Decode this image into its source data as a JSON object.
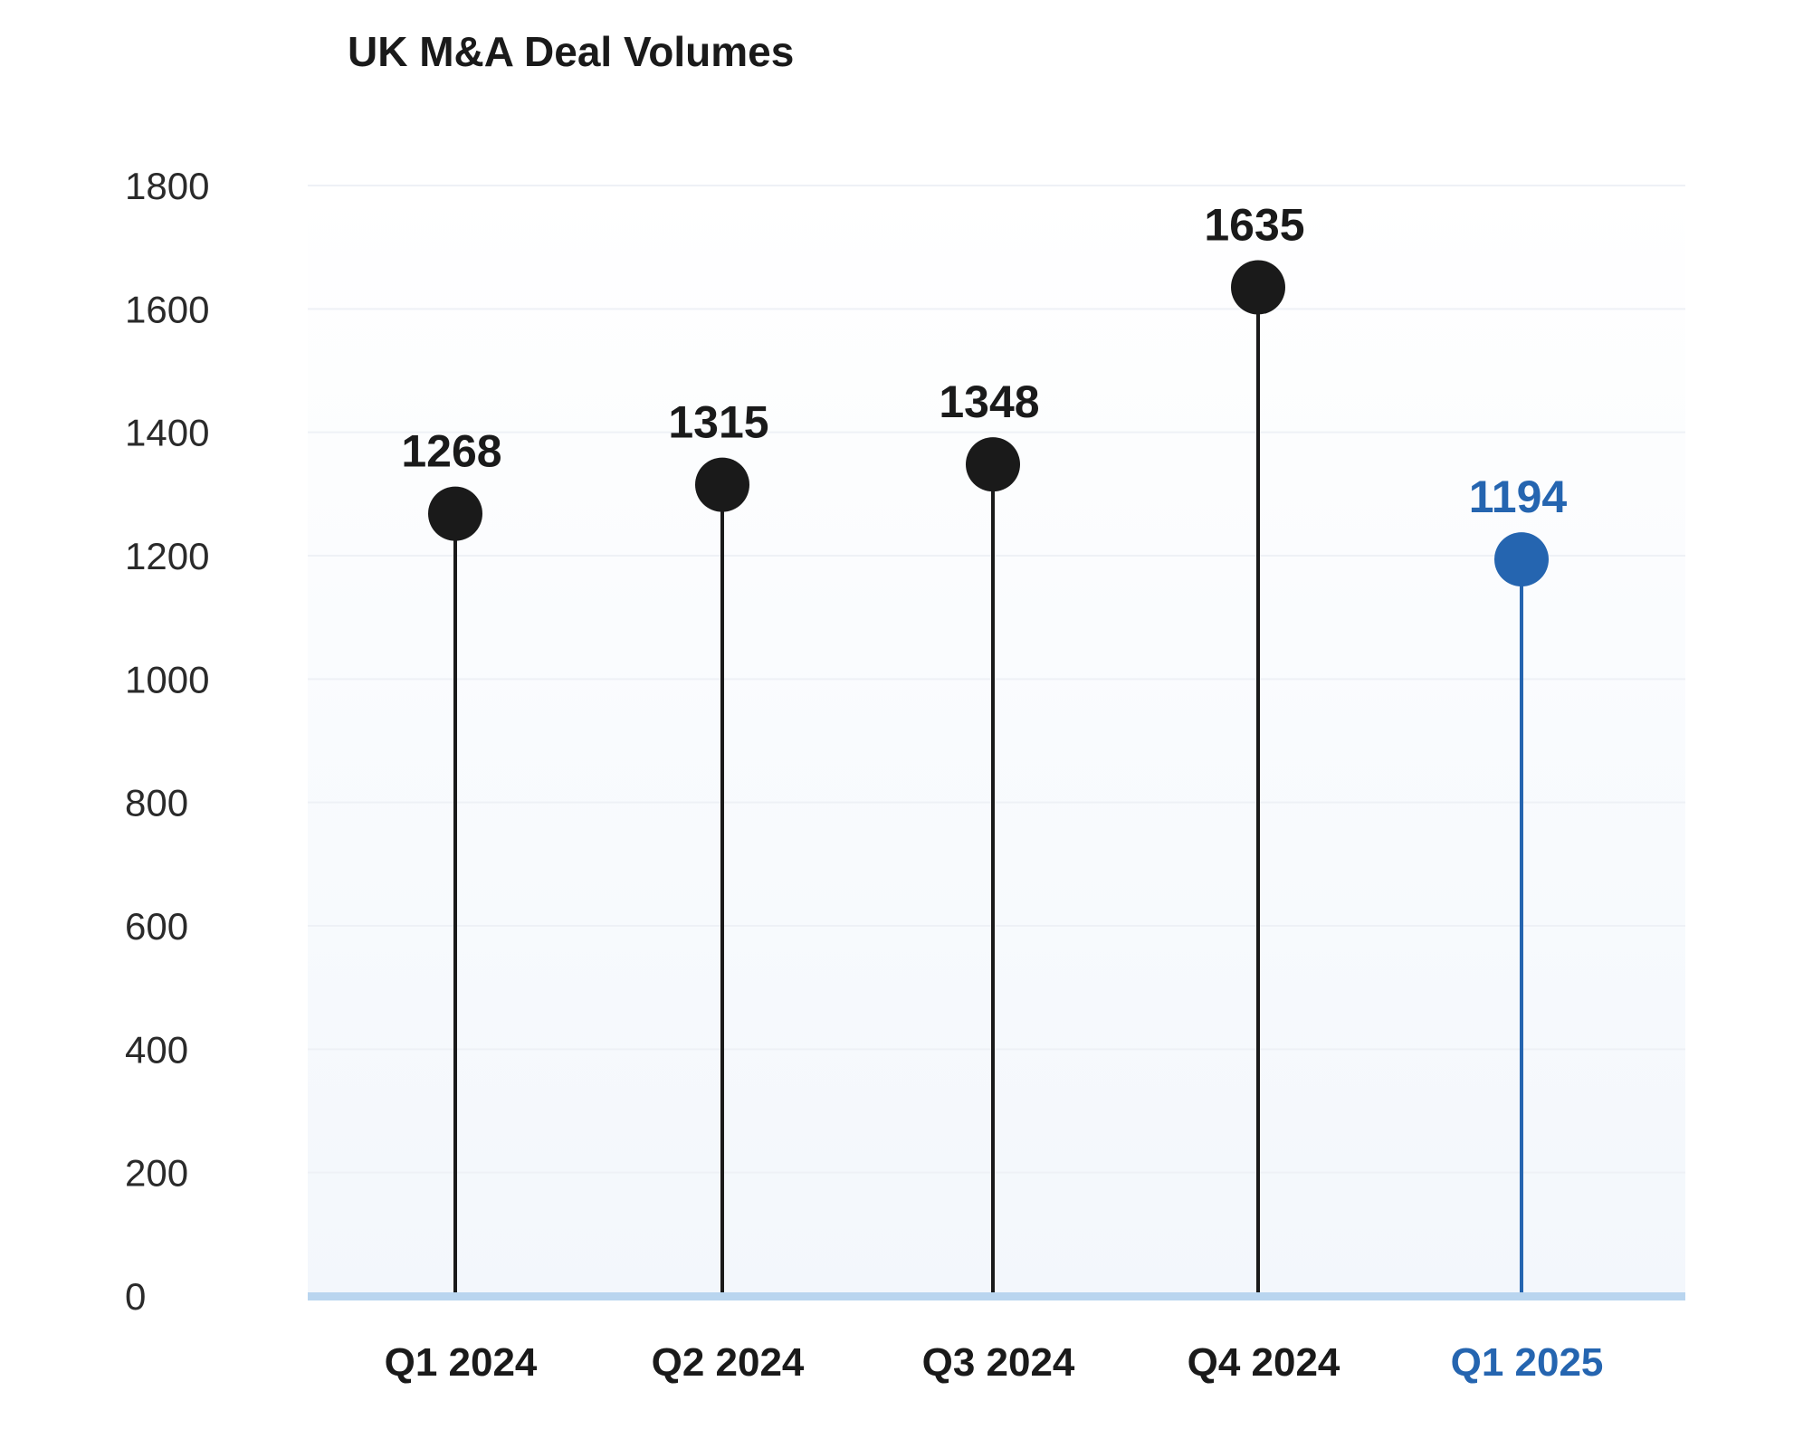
{
  "chart_data": {
    "type": "lollipop",
    "title": "UK M&A Deal Volumes",
    "xlabel": "",
    "ylabel": "",
    "categories": [
      "Q1 2024",
      "Q2 2024",
      "Q3 2024",
      "Q4 2024",
      "Q1 2025"
    ],
    "values": [
      1268,
      1315,
      1348,
      1635,
      1194
    ],
    "highlight_index": 4,
    "ylim": [
      0,
      1800
    ],
    "yticks": [
      0,
      200,
      400,
      600,
      800,
      1000,
      1200,
      1400,
      1600,
      1800
    ],
    "grid": true,
    "legend": "none",
    "colors": {
      "default": "#1a1a1a",
      "highlight": "#2565b0",
      "baseline": "#b9d5ef",
      "grid": "#eef1f6",
      "plot_bg_top": "#ffffff",
      "plot_bg_bottom": "#f3f7fc"
    }
  }
}
